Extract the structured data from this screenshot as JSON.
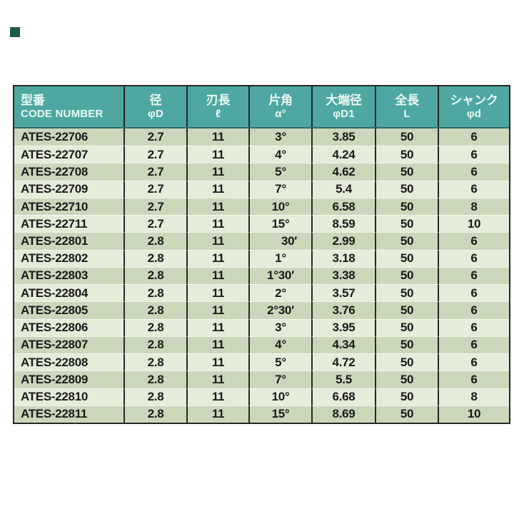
{
  "page": {
    "background_color": "#ffffff"
  },
  "corner_marker": {
    "color": "#1e5b40"
  },
  "table": {
    "header_bg_color": "#4ea7a1",
    "header_text_color": "#ecf9f4",
    "row_dark_color": "#cbd7ba",
    "row_light_color": "#e5ecd8",
    "border_color": "#262626",
    "body_text_color": "#1a1a1a",
    "columns": [
      {
        "title": "型番",
        "subtitle": "CODE NUMBER"
      },
      {
        "title": "径",
        "subtitle": "φD"
      },
      {
        "title": "刃長",
        "subtitle": "ℓ"
      },
      {
        "title": "片角",
        "subtitle": "α°"
      },
      {
        "title": "大端径",
        "subtitle": "φD1"
      },
      {
        "title": "全長",
        "subtitle": "L"
      },
      {
        "title": "シャンク",
        "subtitle": "φd"
      }
    ],
    "rows": [
      [
        "ATES-22706",
        "2.7",
        "11",
        "3°",
        "3.85",
        "50",
        "6"
      ],
      [
        "ATES-22707",
        "2.7",
        "11",
        "4°",
        "4.24",
        "50",
        "6"
      ],
      [
        "ATES-22708",
        "2.7",
        "11",
        "5°",
        "4.62",
        "50",
        "6"
      ],
      [
        "ATES-22709",
        "2.7",
        "11",
        "7°",
        "5.4",
        "50",
        "6"
      ],
      [
        "ATES-22710",
        "2.7",
        "11",
        "10°",
        "6.58",
        "50",
        "8"
      ],
      [
        "ATES-22711",
        "2.7",
        "11",
        "15°",
        "8.59",
        "50",
        "10"
      ],
      [
        "ATES-22801",
        "2.8",
        "11",
        "30′",
        "2.99",
        "50",
        "6"
      ],
      [
        "ATES-22802",
        "2.8",
        "11",
        "1°",
        "3.18",
        "50",
        "6"
      ],
      [
        "ATES-22803",
        "2.8",
        "11",
        "1°30′",
        "3.38",
        "50",
        "6"
      ],
      [
        "ATES-22804",
        "2.8",
        "11",
        "2°",
        "3.57",
        "50",
        "6"
      ],
      [
        "ATES-22805",
        "2.8",
        "11",
        "2°30′",
        "3.76",
        "50",
        "6"
      ],
      [
        "ATES-22806",
        "2.8",
        "11",
        "3°",
        "3.95",
        "50",
        "6"
      ],
      [
        "ATES-22807",
        "2.8",
        "11",
        "4°",
        "4.34",
        "50",
        "6"
      ],
      [
        "ATES-22808",
        "2.8",
        "11",
        "5°",
        "4.72",
        "50",
        "6"
      ],
      [
        "ATES-22809",
        "2.8",
        "11",
        "7°",
        "5.5",
        "50",
        "6"
      ],
      [
        "ATES-22810",
        "2.8",
        "11",
        "10°",
        "6.68",
        "50",
        "8"
      ],
      [
        "ATES-22811",
        "2.8",
        "11",
        "15°",
        "8.69",
        "50",
        "10"
      ]
    ]
  }
}
